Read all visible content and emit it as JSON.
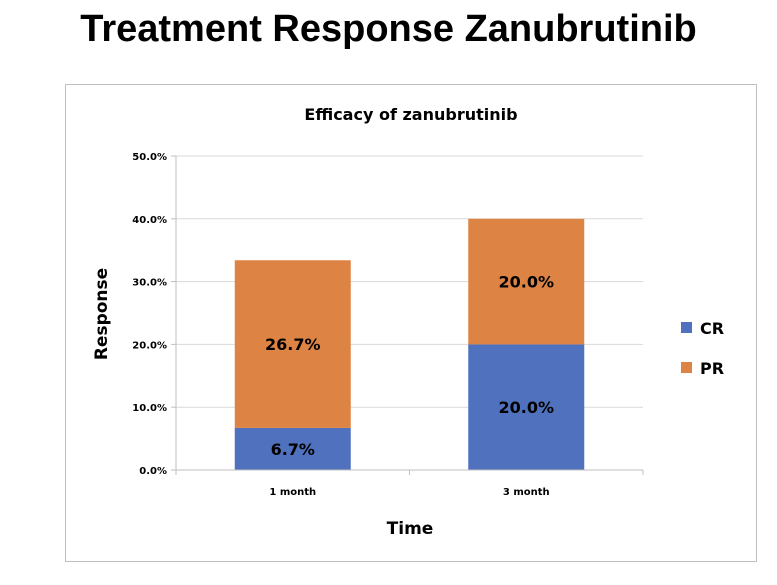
{
  "page": {
    "title": "Treatment Response Zanubrutinib"
  },
  "colors": {
    "CR": "#4f71be",
    "PR": "#dd8344",
    "grid": "#d9d9d9",
    "axis": "#bfbfbf"
  },
  "chart_data": {
    "type": "bar",
    "stacked": true,
    "title": "Efficacy of zanubrutinib",
    "xlabel": "Time",
    "ylabel": "Response",
    "categories": [
      "1 month",
      "3 month"
    ],
    "series": [
      {
        "name": "CR",
        "values": [
          6.7,
          20.0
        ],
        "labels": [
          "6.7%",
          "20.0%"
        ]
      },
      {
        "name": "PR",
        "values": [
          26.7,
          20.0
        ],
        "labels": [
          "26.7%",
          "20.0%"
        ]
      }
    ],
    "ylim": [
      0,
      50
    ],
    "yticks": [
      0,
      10,
      20,
      30,
      40,
      50
    ],
    "ytick_labels": [
      "0.0%",
      "10.0%",
      "20.0%",
      "30.0%",
      "40.0%",
      "50.0%"
    ],
    "grid": true,
    "legend": [
      "CR",
      "PR"
    ],
    "legend_position": "right"
  }
}
